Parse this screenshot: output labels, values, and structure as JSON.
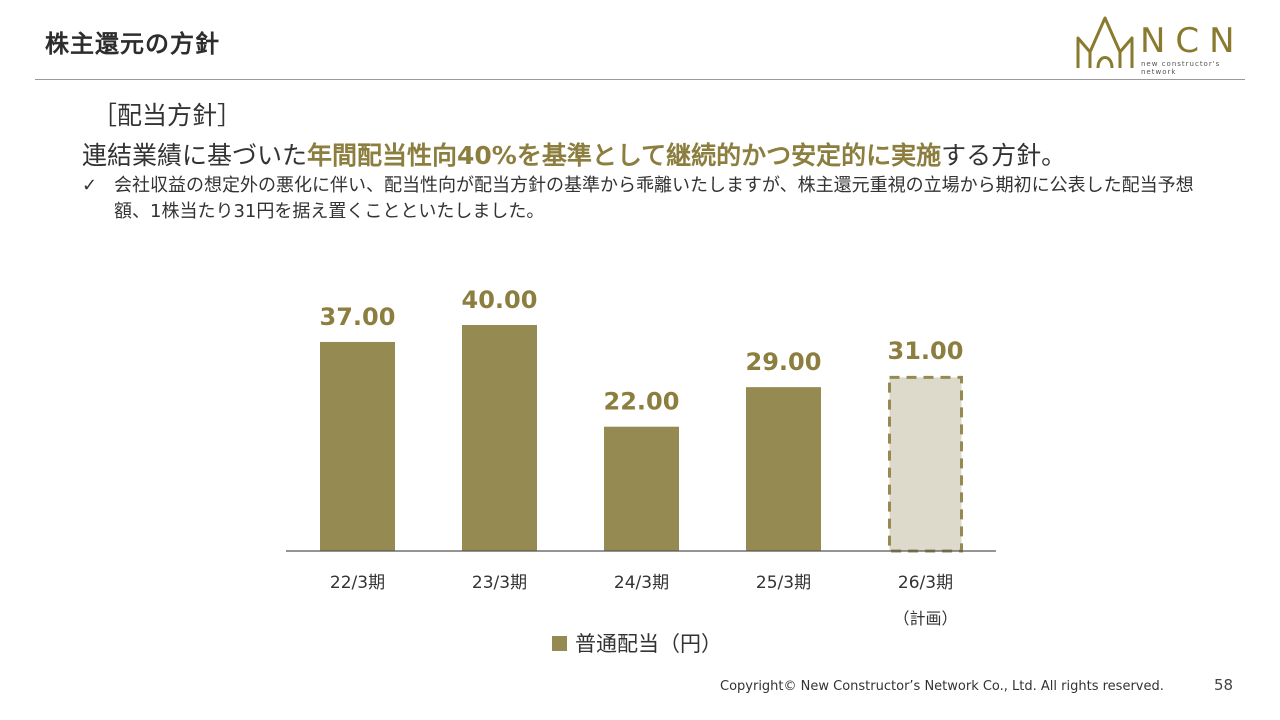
{
  "header": {
    "title": "株主還元の方針",
    "logo_text": "NCN",
    "logo_sub": "new constructor's network"
  },
  "policy": {
    "heading": "［配当方針］",
    "main_prefix": "連結業績に基づいた",
    "main_highlight": "年間配当性向40%を基準として継続的かつ安定的に実施",
    "main_suffix": "する方針。",
    "check_mark": "✓",
    "note": "会社収益の想定外の悪化に伴い、配当性向が配当方針の基準から乖離いたしますが、株主還元重視の立場から期初に公表した配当予想額、1株当たり31円を据え置くことといたしました。"
  },
  "chart_data": {
    "type": "bar",
    "title": "",
    "categories": [
      "22/3期",
      "23/3期",
      "24/3期",
      "25/3期",
      "26/3期"
    ],
    "category_sublabels": [
      "",
      "",
      "",
      "",
      "（計画）"
    ],
    "series": [
      {
        "name": "普通配当（円）",
        "values": [
          37.0,
          40.0,
          22.0,
          29.0,
          31.0
        ]
      }
    ],
    "data_labels": [
      "37.00",
      "40.00",
      "22.00",
      "29.00",
      "31.00"
    ],
    "planned": [
      false,
      false,
      false,
      false,
      true
    ],
    "ylim": [
      0,
      40
    ],
    "xlabel": "",
    "ylabel": "",
    "legend_position": "bottom",
    "colors": {
      "bar": "#958b52",
      "planned_fill": "#dedacb",
      "label": "#8c7e3f",
      "axis": "#555555"
    }
  },
  "footer": {
    "copyright": "Copyright© New Constructor’s Network Co., Ltd. All rights reserved.",
    "page_number": "58"
  }
}
